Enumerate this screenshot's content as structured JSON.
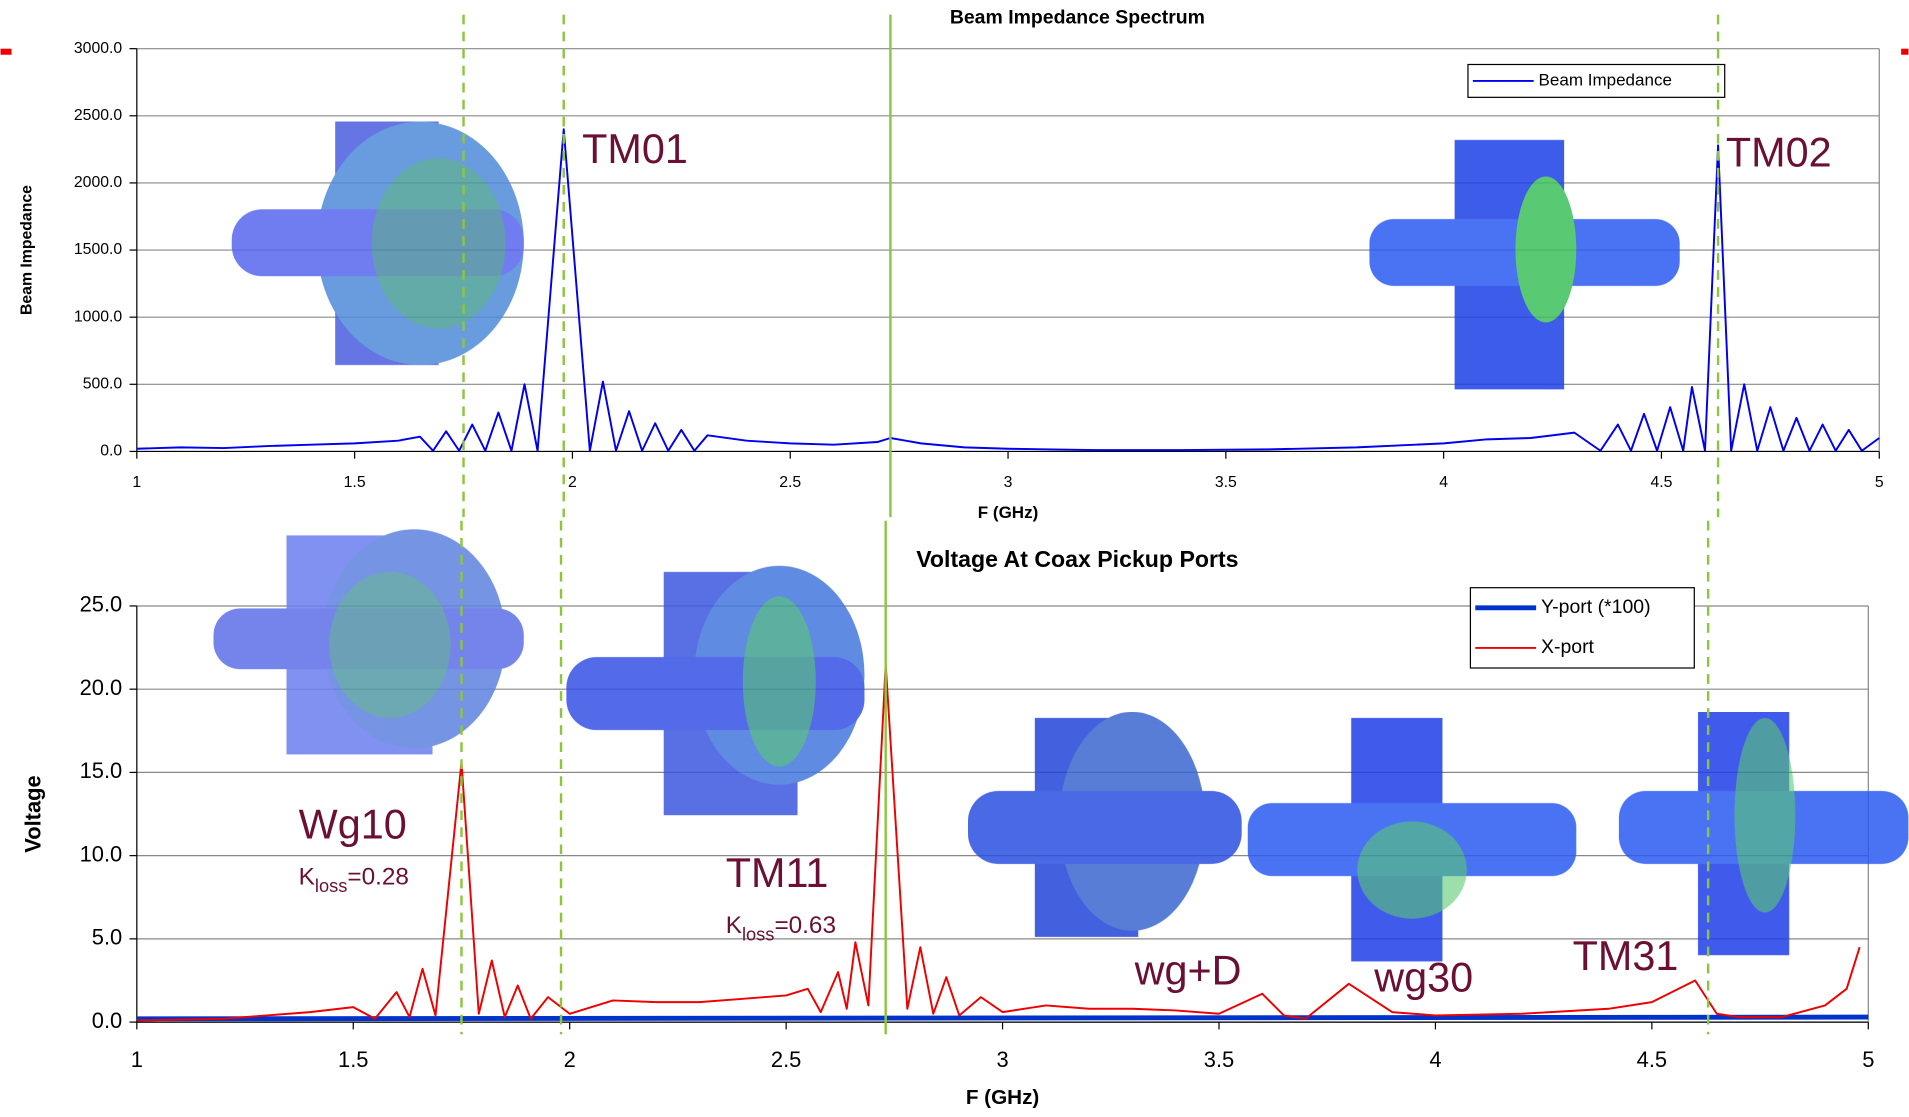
{
  "chart_data": [
    {
      "type": "line",
      "title": "Beam Impedance Spectrum",
      "x_label": "F (GHz)",
      "y_label": "Beam Impedance",
      "xlim": [
        1,
        5
      ],
      "xticks": [
        1,
        1.5,
        2,
        2.5,
        3,
        3.5,
        4,
        4.5,
        5
      ],
      "ylim": [
        0,
        3000
      ],
      "yticks": [
        {
          "value": 0,
          "label": "0.0"
        },
        {
          "value": 500,
          "label": "500.0"
        },
        {
          "value": 1000,
          "label": "1000.0"
        },
        {
          "value": 1500,
          "label": "1500.0"
        },
        {
          "value": 2000,
          "label": "2000.0"
        },
        {
          "value": 2500,
          "label": "2500.0"
        },
        {
          "value": 3000,
          "label": "3000.0"
        }
      ],
      "grid": true,
      "legend": "upper right",
      "vlines": [
        1.75,
        1.98,
        2.73,
        4.63
      ],
      "annotations": [
        {
          "text": "TM01"
        },
        {
          "text": "TM02"
        }
      ],
      "series": [
        {
          "name": "Beam Impedance",
          "color": "#0000ee",
          "x": [
            1.0,
            1.1,
            1.2,
            1.3,
            1.4,
            1.5,
            1.6,
            1.65,
            1.68,
            1.71,
            1.74,
            1.77,
            1.8,
            1.83,
            1.86,
            1.89,
            1.92,
            1.98,
            2.04,
            2.07,
            2.1,
            2.13,
            2.16,
            2.19,
            2.22,
            2.25,
            2.28,
            2.31,
            2.4,
            2.5,
            2.6,
            2.7,
            2.73,
            2.8,
            2.9,
            3.0,
            3.2,
            3.4,
            3.6,
            3.8,
            4.0,
            4.1,
            4.2,
            4.3,
            4.36,
            4.4,
            4.43,
            4.46,
            4.49,
            4.52,
            4.55,
            4.57,
            4.6,
            4.63,
            4.66,
            4.69,
            4.72,
            4.75,
            4.78,
            4.81,
            4.84,
            4.87,
            4.9,
            4.93,
            4.96,
            5.0
          ],
          "values": [
            20,
            30,
            25,
            40,
            50,
            60,
            80,
            110,
            5,
            150,
            5,
            200,
            5,
            290,
            5,
            500,
            5,
            2400,
            5,
            520,
            5,
            300,
            5,
            210,
            5,
            160,
            5,
            120,
            80,
            60,
            50,
            70,
            100,
            60,
            30,
            20,
            10,
            10,
            15,
            30,
            60,
            90,
            100,
            140,
            5,
            200,
            5,
            280,
            5,
            330,
            5,
            480,
            5,
            2280,
            5,
            500,
            5,
            330,
            5,
            250,
            5,
            200,
            5,
            160,
            5,
            100
          ]
        }
      ]
    },
    {
      "type": "line",
      "title": "Voltage At Coax Pickup Ports",
      "x_label": "F (GHz)",
      "y_label": "Voltage",
      "xlim": [
        1,
        5
      ],
      "xticks": [
        1,
        1.5,
        2,
        2.5,
        3,
        3.5,
        4,
        4.5,
        5
      ],
      "ylim": [
        0,
        25
      ],
      "yticks": [
        {
          "value": 0,
          "label": "0.0"
        },
        {
          "value": 5,
          "label": "5.0"
        },
        {
          "value": 10,
          "label": "10.0"
        },
        {
          "value": 15,
          "label": "15.0"
        },
        {
          "value": 20,
          "label": "20.0"
        },
        {
          "value": 25,
          "label": "25.0"
        }
      ],
      "grid": true,
      "legend": "upper right",
      "annotations": [
        {
          "text": "Wg10"
        },
        {
          "text": "K",
          "subscript": "loss",
          "suffix": "=0.28"
        },
        {
          "text": "TM11"
        },
        {
          "text": "K",
          "subscript": "loss",
          "suffix": "=0.63"
        },
        {
          "text": "wg+D"
        },
        {
          "text": "wg30"
        },
        {
          "text": "TM31"
        }
      ],
      "series": [
        {
          "name": "Y-port (*100)",
          "color": "#0033cc",
          "x": [
            1.0,
            5.0
          ],
          "values": [
            0.2,
            0.3
          ]
        },
        {
          "name": "X-port",
          "color": "#ee0000",
          "x": [
            1.0,
            1.2,
            1.4,
            1.5,
            1.55,
            1.6,
            1.63,
            1.66,
            1.69,
            1.75,
            1.79,
            1.82,
            1.85,
            1.88,
            1.91,
            1.95,
            2.0,
            2.1,
            2.2,
            2.3,
            2.4,
            2.5,
            2.55,
            2.58,
            2.62,
            2.64,
            2.66,
            2.69,
            2.73,
            2.78,
            2.81,
            2.84,
            2.87,
            2.9,
            2.95,
            3.0,
            3.1,
            3.2,
            3.3,
            3.4,
            3.5,
            3.6,
            3.65,
            3.7,
            3.8,
            3.9,
            4.0,
            4.2,
            4.4,
            4.5,
            4.6,
            4.65,
            4.7,
            4.8,
            4.9,
            4.95,
            4.98
          ],
          "values": [
            0.1,
            0.2,
            0.6,
            0.9,
            0.2,
            1.8,
            0.3,
            3.2,
            0.4,
            15.6,
            0.5,
            3.7,
            0.3,
            2.2,
            0.2,
            1.5,
            0.5,
            1.3,
            1.2,
            1.2,
            1.4,
            1.6,
            2.0,
            0.6,
            3.0,
            0.8,
            4.8,
            1.0,
            21.5,
            0.8,
            4.5,
            0.5,
            2.7,
            0.4,
            1.5,
            0.6,
            1.0,
            0.8,
            0.8,
            0.7,
            0.5,
            1.7,
            0.4,
            0.2,
            2.3,
            0.6,
            0.4,
            0.5,
            0.8,
            1.2,
            2.5,
            0.5,
            0.3,
            0.3,
            1.0,
            2.0,
            4.5
          ]
        }
      ]
    }
  ]
}
